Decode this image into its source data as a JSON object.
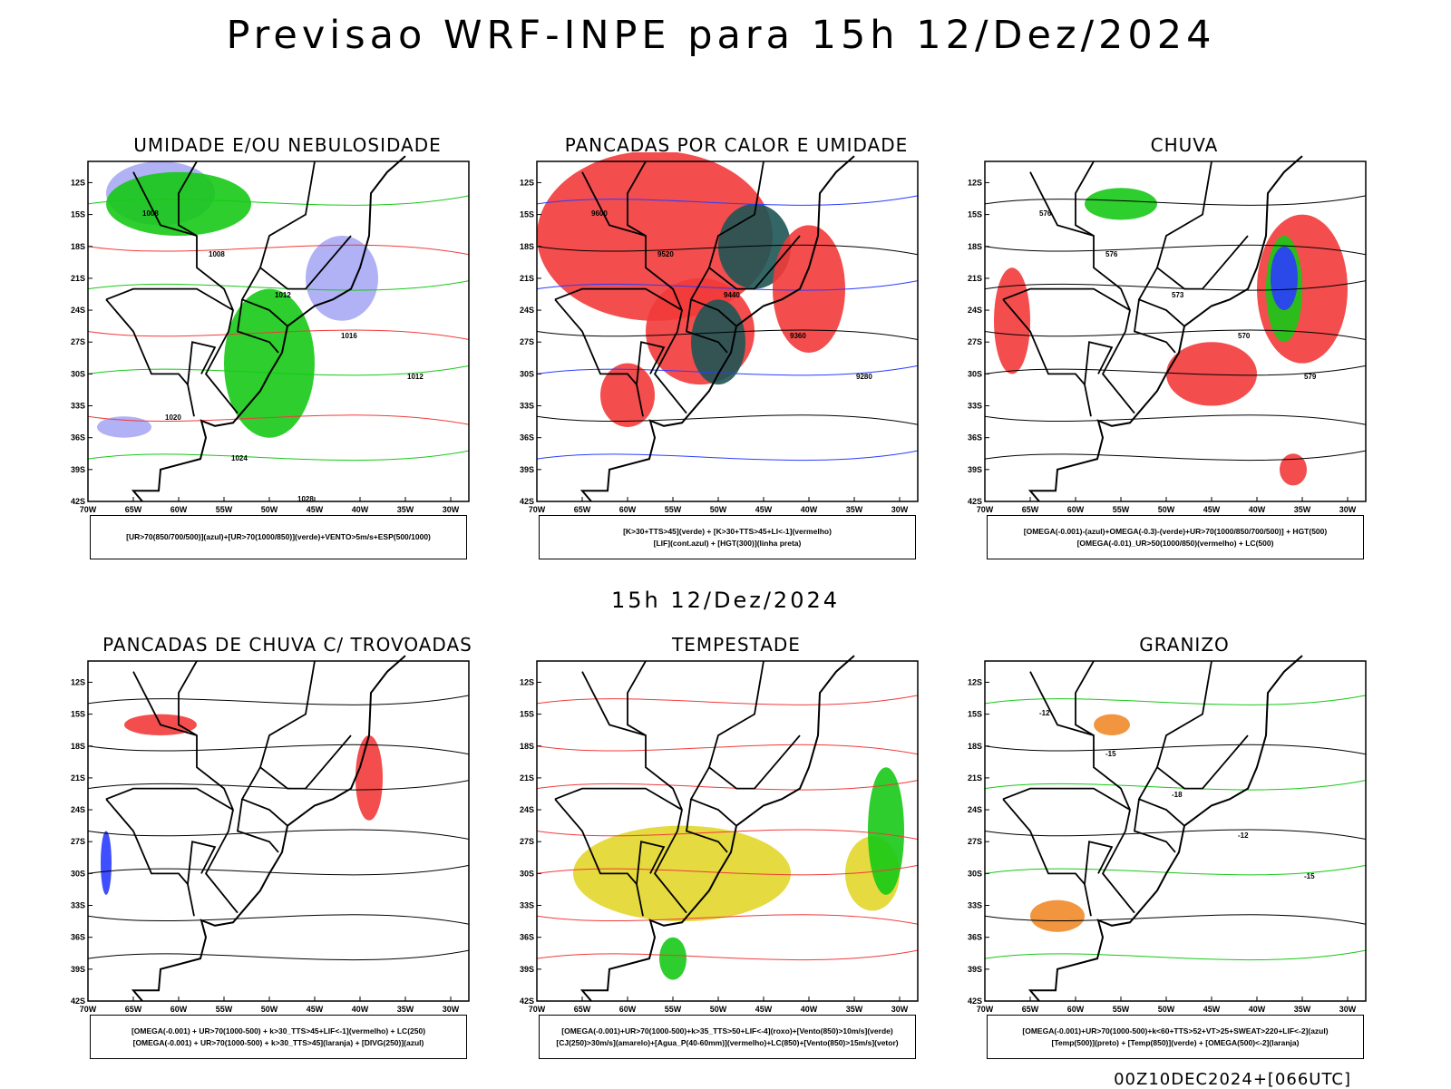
{
  "title": "Previsao WRF-INPE  para 15h 12/Dez/2024",
  "mid_label": "15h 12/Dez/2024",
  "footer": "00Z10DEC2024+[066UTC]",
  "axes": {
    "lat_labels": [
      "12S",
      "15S",
      "18S",
      "21S",
      "24S",
      "27S",
      "30S",
      "33S",
      "36S",
      "39S",
      "42S"
    ],
    "lon_labels": [
      "70W",
      "65W",
      "60W",
      "55W",
      "50W",
      "45W",
      "40W",
      "35W",
      "30W"
    ]
  },
  "colors": {
    "red": "#f23a3a",
    "green": "#16c916",
    "blue": "#2a3cff",
    "lightblue": "#a8a8f5",
    "darkteal": "#1f5555",
    "yellow": "#e2d62a",
    "orange": "#f08a2a",
    "purple": "#b020d0"
  },
  "panels": [
    {
      "id": "umidade",
      "title": "UMIDADE E/OU NEBULOSIDADE",
      "legend": [
        "[UR>70(850/700/500)](azul)+[UR>70(1000/850)](verde)+VENTO>5m/s+ESP(500/1000)"
      ],
      "contour_labels": [
        "1008",
        "1008",
        "1012",
        "1016",
        "1012",
        "1020",
        "1024",
        "1028"
      ]
    },
    {
      "id": "pancadas-calor",
      "title": "PANCADAS POR CALOR E UMIDADE",
      "legend": [
        "[K>30+TTS>45](verde)  +  [K>30+TTS>45+LI<-1](vermelho)",
        "[LIF](cont.azul)  +  [HGT(300)](linha preta)"
      ],
      "contour_labels": [
        "9600",
        "9520",
        "9440",
        "9360",
        "9280"
      ]
    },
    {
      "id": "chuva",
      "title": "CHUVA",
      "legend": [
        "[OMEGA(-0.001)-(azul)+OMEGA(-0.3)-(verde)+UR>70(1000/850/700/500)]  +  HGT(500)",
        "[OMEGA(-0.01)_UR>50(1000/850)(vermelho)  +  LC(500)"
      ],
      "contour_labels": [
        "576",
        "576",
        "573",
        "570",
        "579"
      ]
    },
    {
      "id": "pancadas-trovoadas",
      "title": "PANCADAS DE CHUVA C/ TROVOADAS",
      "legend": [
        "[OMEGA(-0.001)  +  UR>70(1000-500)  +  k>30_TTS>45+LIF<-1](vermelho)  +  LC(250)",
        "[OMEGA(-0.001)  +  UR>70(1000-500)  +  k>30_TTS>45](laranja)  +  [DIVG(250)](azul)"
      ],
      "contour_labels": []
    },
    {
      "id": "tempestade",
      "title": "TEMPESTADE",
      "legend": [
        "[OMEGA(-0.001)+UR>70(1000-500)+k>35_TTS>50+LIF<-4](roxo)+[Vento(850)>10m/s](verde)",
        "[CJ(250)>30m/s](amarelo)+[Agua_P(40-60mm)](vermelho)+LC(850)+[Vento(850)>15m/s](vetor)"
      ],
      "contour_labels": []
    },
    {
      "id": "granizo",
      "title": "GRANIZO",
      "legend": [
        "[OMEGA(-0.001)+UR>70(1000-500)+k<60+TTS>52+VT>25+SWEAT>220+LIF<-2](azul)",
        "[Temp(500)](preto)  +  [Temp(850)](verde)  +  [OMEGA(500)<-2](laranja)"
      ],
      "contour_labels": [
        "-12",
        "-15",
        "-18",
        "-12",
        "-15"
      ]
    }
  ]
}
